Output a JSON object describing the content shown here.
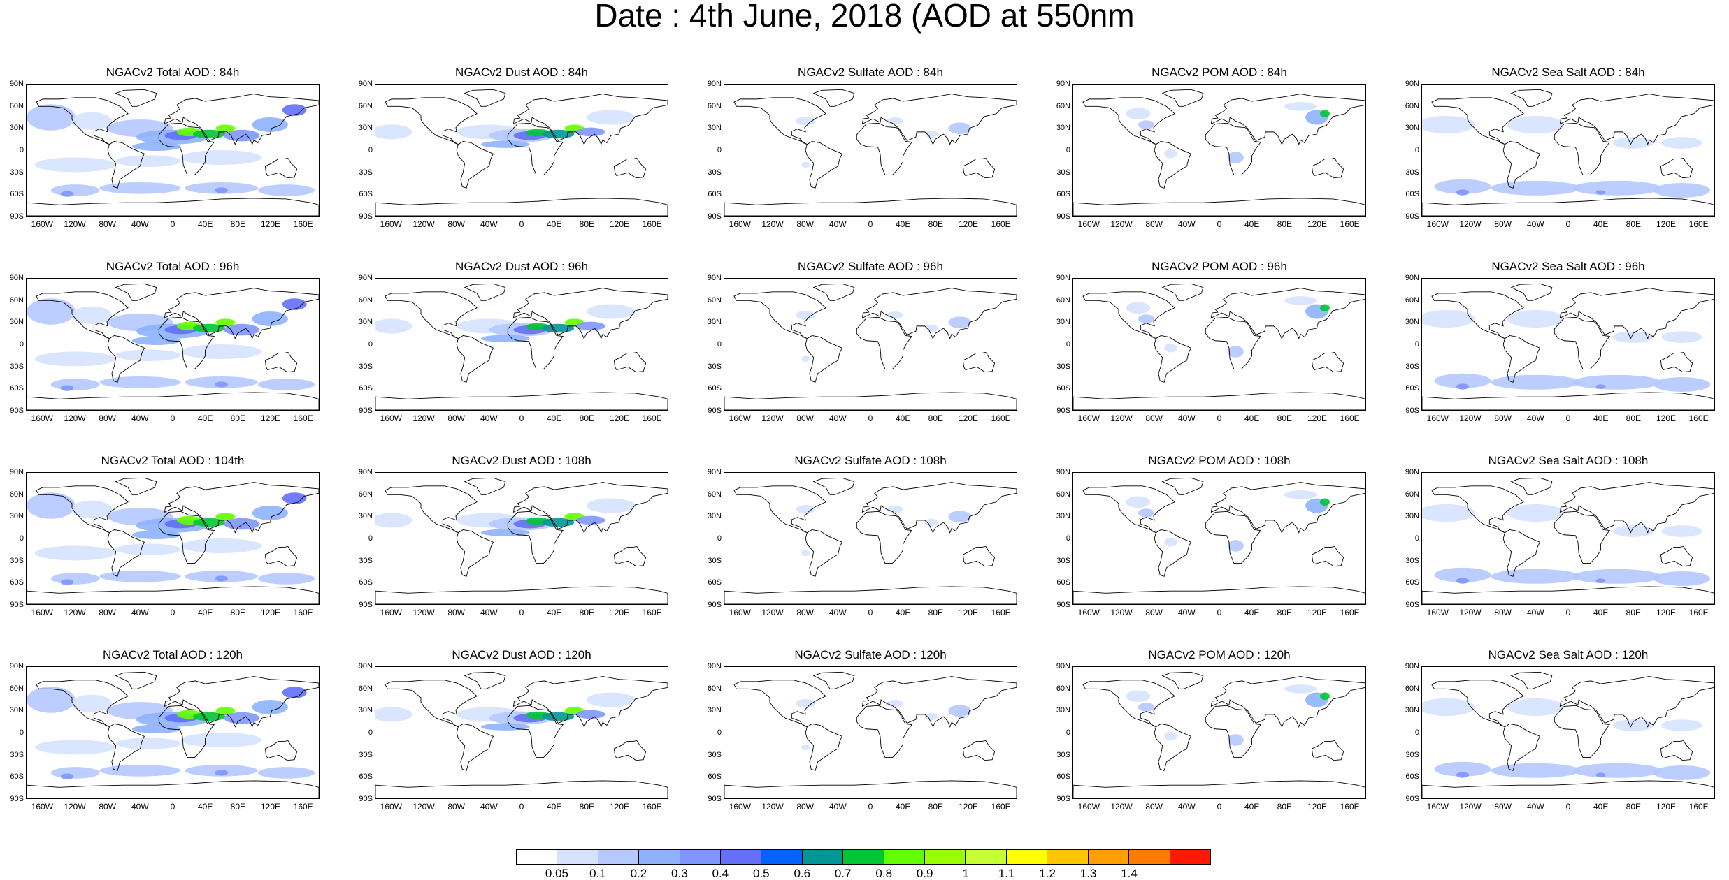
{
  "title": "Date : 4th June, 2018 (AOD at 550nm",
  "panels": [
    {
      "title": "NGACv2 Total AOD : 84h",
      "species": "total"
    },
    {
      "title": "NGACv2 Dust AOD : 84h",
      "species": "dust"
    },
    {
      "title": "NGACv2 Sulfate AOD : 84h",
      "species": "sulfate"
    },
    {
      "title": "NGACv2 POM AOD : 84h",
      "species": "pom"
    },
    {
      "title": "NGACv2 Sea Salt AOD : 84h",
      "species": "seasalt"
    },
    {
      "title": "NGACv2 Total AOD : 96h",
      "species": "total"
    },
    {
      "title": "NGACv2 Dust AOD : 96h",
      "species": "dust"
    },
    {
      "title": "NGACv2 Sulfate AOD : 96h",
      "species": "sulfate"
    },
    {
      "title": "NGACv2 POM AOD : 96h",
      "species": "pom"
    },
    {
      "title": "NGACv2 Sea Salt AOD : 96h",
      "species": "seasalt"
    },
    {
      "title": "NGACv2 Total AOD : 104th",
      "species": "total"
    },
    {
      "title": "NGACv2 Dust AOD : 108h",
      "species": "dust"
    },
    {
      "title": "NGACv2 Sulfate AOD : 108h",
      "species": "sulfate"
    },
    {
      "title": "NGACv2 POM AOD : 108h",
      "species": "pom"
    },
    {
      "title": "NGACv2 Sea Salt AOD : 108h",
      "species": "seasalt"
    },
    {
      "title": "NGACv2 Total AOD : 120h",
      "species": "total"
    },
    {
      "title": "NGACv2 Dust AOD : 120h",
      "species": "dust"
    },
    {
      "title": "NGACv2 Sulfate AOD : 120h",
      "species": "sulfate"
    },
    {
      "title": "NGACv2 POM AOD : 120h",
      "species": "pom"
    },
    {
      "title": "NGACv2 Sea Salt  AOD : 120h",
      "species": "seasalt"
    }
  ],
  "lat_ticks": [
    "90N",
    "60N",
    "30N",
    "0",
    "30S",
    "60S",
    "90S"
  ],
  "lon_ticks": [
    "160W",
    "120W",
    "80W",
    "40W",
    "0",
    "40E",
    "80E",
    "120E",
    "160E"
  ],
  "colorbar": {
    "labels": [
      "0.05",
      "0.1",
      "0.2",
      "0.3",
      "0.4",
      "0.5",
      "0.6",
      "0.7",
      "0.8",
      "0.9",
      "1",
      "1.1",
      "1.2",
      "1.3",
      "1.4"
    ],
    "colors": [
      "#ffffff",
      "#d6e2ff",
      "#b5c9ff",
      "#8eb2ff",
      "#7f96ff",
      "#6370f8",
      "#0063ff",
      "#009696",
      "#00c633",
      "#63ff00",
      "#96ff00",
      "#c6ff33",
      "#ffff00",
      "#ffc600",
      "#ffa000",
      "#ff7c00",
      "#ff1900"
    ]
  }
}
